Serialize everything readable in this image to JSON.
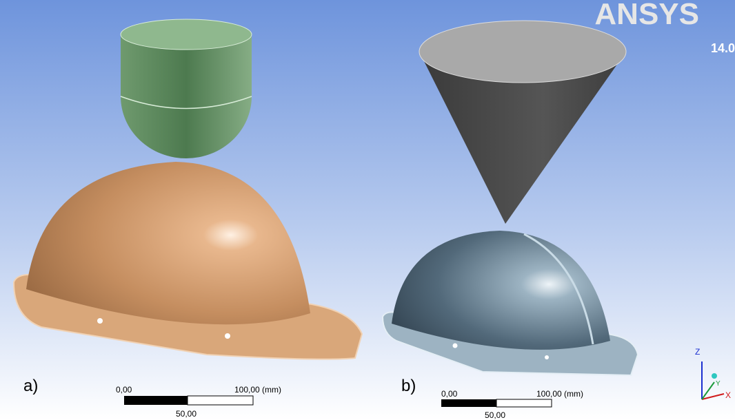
{
  "panels": [
    {
      "label": "a)",
      "scale": {
        "start": "0,00",
        "end": "100,00 (mm)",
        "mid": "50,00"
      }
    },
    {
      "label": "b)",
      "scale": {
        "start": "0,00",
        "end": "100,00 (mm)",
        "mid": "50,00"
      }
    }
  ],
  "logo": {
    "name": "ANSYS",
    "version": "14.0"
  },
  "triad": {
    "z": "Z",
    "y": "Y",
    "x": "X"
  }
}
